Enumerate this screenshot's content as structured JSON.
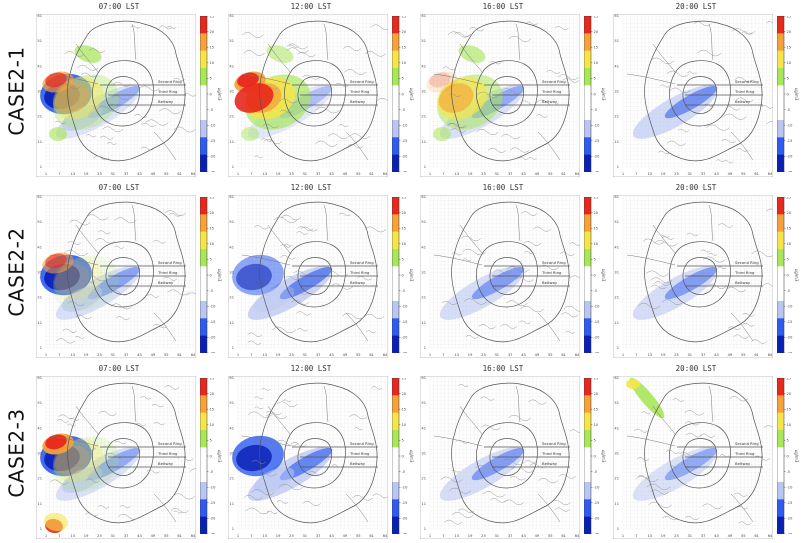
{
  "rows": [
    {
      "label": "CASE2-1",
      "panels": [
        {
          "time": "07:00 LST",
          "pattern": {
            "west_red": 0.75,
            "west_blue": 1.0,
            "north_green": 0.8,
            "mid_yellow": 0.5,
            "band_blue": 0.3,
            "nw_green": 0.0,
            "sw_red": 0.0
          }
        },
        {
          "time": "12:00 LST",
          "pattern": {
            "west_red": 1.0,
            "west_blue": 0.0,
            "north_green": 0.6,
            "mid_yellow": 1.0,
            "band_blue": 0.1,
            "nw_green": 0.0,
            "sw_red": 0.0
          }
        },
        {
          "time": "16:00 LST",
          "pattern": {
            "west_red": 0.2,
            "west_blue": 0.0,
            "north_green": 0.7,
            "mid_yellow": 0.8,
            "band_blue": 0.4,
            "nw_green": 0.0,
            "sw_red": 0.0
          }
        },
        {
          "time": "20:00 LST",
          "pattern": {
            "west_red": 0.0,
            "west_blue": 0.0,
            "north_green": 0.0,
            "mid_yellow": 0.0,
            "band_blue": 0.8,
            "nw_green": 0.0,
            "sw_red": 0.0
          }
        }
      ]
    },
    {
      "label": "CASE2-2",
      "panels": [
        {
          "time": "07:00 LST",
          "pattern": {
            "west_red": 0.6,
            "west_blue": 1.0,
            "north_green": 0.0,
            "mid_yellow": 0.2,
            "band_blue": 0.5,
            "nw_green": 0.0,
            "sw_red": 0.0
          }
        },
        {
          "time": "12:00 LST",
          "pattern": {
            "west_red": 0.0,
            "west_blue": 0.6,
            "north_green": 0.0,
            "mid_yellow": 0.0,
            "band_blue": 1.0,
            "nw_green": 0.0,
            "sw_red": 0.0
          }
        },
        {
          "time": "16:00 LST",
          "pattern": {
            "west_red": 0.0,
            "west_blue": 0.0,
            "north_green": 0.0,
            "mid_yellow": 0.0,
            "band_blue": 0.6,
            "nw_green": 0.0,
            "sw_red": 0.0
          }
        },
        {
          "time": "20:00 LST",
          "pattern": {
            "west_red": 0.0,
            "west_blue": 0.0,
            "north_green": 0.0,
            "mid_yellow": 0.0,
            "band_blue": 0.6,
            "nw_green": 0.0,
            "sw_red": 0.0
          }
        }
      ]
    },
    {
      "label": "CASE2-3",
      "panels": [
        {
          "time": "07:00 LST",
          "pattern": {
            "west_red": 1.0,
            "west_blue": 1.0,
            "north_green": 0.0,
            "mid_yellow": 0.3,
            "band_blue": 0.4,
            "nw_green": 0.0,
            "sw_red": 1.0
          }
        },
        {
          "time": "12:00 LST",
          "pattern": {
            "west_red": 0.0,
            "west_blue": 0.9,
            "north_green": 0.0,
            "mid_yellow": 0.0,
            "band_blue": 1.0,
            "nw_green": 0.0,
            "sw_red": 0.0
          }
        },
        {
          "time": "16:00 LST",
          "pattern": {
            "west_red": 0.0,
            "west_blue": 0.0,
            "north_green": 0.0,
            "mid_yellow": 0.0,
            "band_blue": 0.6,
            "nw_green": 0.0,
            "sw_red": 0.0
          }
        },
        {
          "time": "20:00 LST",
          "pattern": {
            "west_red": 0.0,
            "west_blue": 0.0,
            "north_green": 0.0,
            "mid_yellow": 0.0,
            "band_blue": 0.4,
            "nw_green": 1.0,
            "sw_red": 0.0
          }
        }
      ]
    }
  ],
  "road_labels": {
    "second_ring": "Second Ring",
    "third_ring": "Third Ring",
    "beltway": "Beltway"
  },
  "colorbar": {
    "unit": "ug/m3",
    "ticks": [
      "25",
      "20",
      "15",
      "10",
      "5",
      "0",
      "-5",
      "-10",
      "-15",
      "-20",
      "-25"
    ]
  },
  "x_ticks": [
    "1",
    "7",
    "13",
    "19",
    "25",
    "31",
    "37",
    "43",
    "49",
    "55",
    "61",
    "64"
  ],
  "y_ticks": [
    "1",
    "11",
    "21",
    "31",
    "41",
    "51",
    "61"
  ],
  "colors": {
    "red": "#e8271d",
    "orange": "#f6a13a",
    "yellow": "#f7e44a",
    "green": "#a8e65a",
    "light_blue": "#b9c6f2",
    "blue": "#2f5cf0",
    "dark_blue": "#0a1fb4"
  },
  "chart_data": {
    "type": "heatmap",
    "title": "",
    "xlabel": "",
    "ylabel": "",
    "times": [
      "07:00 LST",
      "12:00 LST",
      "16:00 LST",
      "20:00 LST"
    ],
    "cases": [
      "CASE2-1",
      "CASE2-2",
      "CASE2-3"
    ],
    "colorbar_range": [
      -25,
      25
    ],
    "colorbar_unit": "ug/m3"
  }
}
